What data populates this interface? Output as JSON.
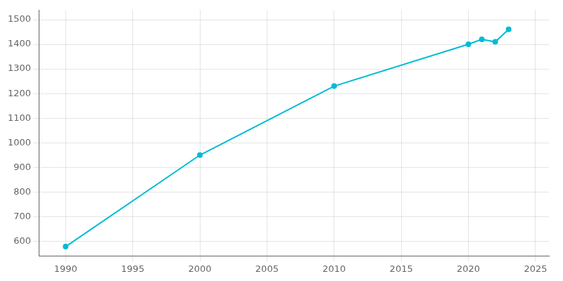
{
  "chart_data": {
    "type": "line",
    "x": [
      1990,
      2000,
      2010,
      2020,
      2021,
      2022,
      2023
    ],
    "values": [
      578,
      950,
      1230,
      1400,
      1420,
      1410,
      1461
    ],
    "color": "#00BCD4",
    "marker": "circle",
    "xlim": [
      1988,
      2026
    ],
    "ylim": [
      540,
      1540
    ],
    "xticks": [
      1990,
      1995,
      2000,
      2005,
      2010,
      2015,
      2020,
      2025
    ],
    "yticks": [
      600,
      700,
      800,
      900,
      1000,
      1100,
      1200,
      1300,
      1400,
      1500
    ],
    "grid": true
  }
}
